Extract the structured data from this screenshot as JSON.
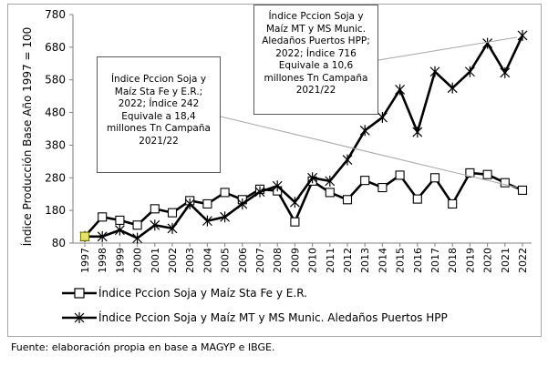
{
  "chart_data": {
    "type": "line",
    "title": "",
    "xlabel": "",
    "ylabel": "Índice Producción Base Año 1997 = 100",
    "x": [
      "1997",
      "1998",
      "1999",
      "2000",
      "2001",
      "2002",
      "2003",
      "2004",
      "2005",
      "2006",
      "2007",
      "2008",
      "2009",
      "2010",
      "2011",
      "2012",
      "2013",
      "2014",
      "2015",
      "2016",
      "2017",
      "2018",
      "2019",
      "2020",
      "2021",
      "2022"
    ],
    "ylim": [
      80,
      780
    ],
    "yticks": [
      80,
      180,
      280,
      380,
      480,
      580,
      680,
      780
    ],
    "grid": false,
    "legend_position": "bottom",
    "series": [
      {
        "name": "Índice Pccion Soja y Maíz Sta Fe y E.R.",
        "marker": "square",
        "color": "#000000",
        "values": [
          100,
          160,
          150,
          135,
          185,
          173,
          210,
          200,
          235,
          213,
          245,
          240,
          145,
          270,
          235,
          213,
          272,
          250,
          288,
          215,
          280,
          200,
          295,
          290,
          265,
          242
        ]
      },
      {
        "name": "Índice Pccion Soja y Maíz MT y MS Munic. Aledaños Puertos HPP",
        "marker": "star",
        "color": "#000000",
        "values": [
          100,
          100,
          120,
          95,
          135,
          125,
          200,
          148,
          160,
          200,
          237,
          255,
          205,
          280,
          270,
          335,
          425,
          465,
          550,
          420,
          605,
          555,
          605,
          692,
          602,
          716
        ]
      }
    ],
    "annotations": [
      "Índice Pccion Soja y\nMaíz Sta Fe y E.R.;\n2022; Índice 242\nEquivale a 18,4\nmillones Tn Campaña\n2021/22",
      "Índice Pccion Soja y\nMaíz MT y MS Munic.\nAledaños Puertos HPP;\n2022; Índice 716\nEquivale a 10,6\nmillones Tn Campaña\n2021/22"
    ]
  },
  "source": "Fuente: elaboración propia en base a MAGYP e IBGE."
}
